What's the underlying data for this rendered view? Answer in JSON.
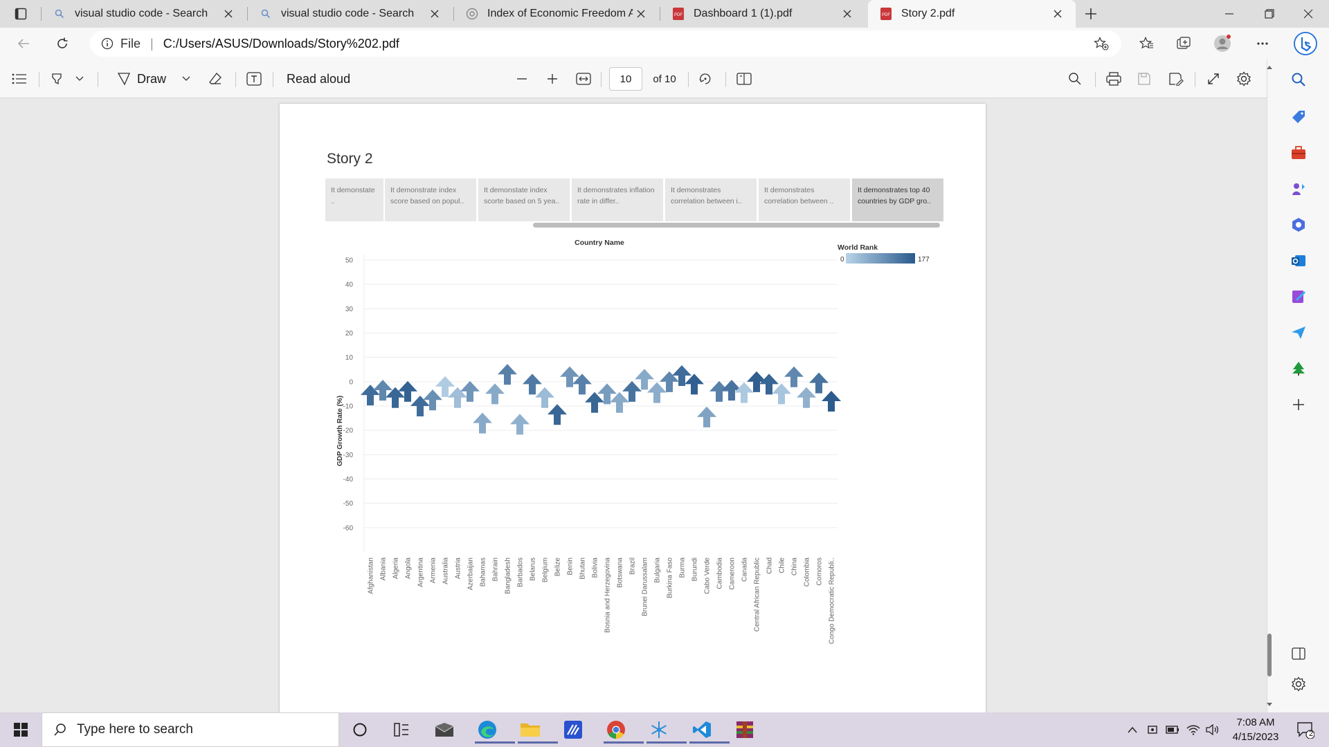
{
  "browser": {
    "tabs": [
      {
        "title": "visual studio code - Search",
        "icon": "search-icon"
      },
      {
        "title": "visual studio code - Search",
        "icon": "search-icon"
      },
      {
        "title": "Index of Economic Freedom Anal",
        "icon": "site-icon"
      },
      {
        "title": "Dashboard 1 (1).pdf",
        "icon": "pdf-icon"
      },
      {
        "title": "Story 2.pdf",
        "icon": "pdf-icon",
        "active": true
      }
    ],
    "address": {
      "scheme_label": "File",
      "url": "C:/Users/ASUS/Downloads/Story%202.pdf"
    }
  },
  "pdf_toolbar": {
    "draw_label": "Draw",
    "read_aloud_label": "Read aloud",
    "page_number": "10",
    "page_total": "of 10"
  },
  "story": {
    "title": "Story 2",
    "points": [
      "It demonstate ..",
      "It demonstrate index score based on popul..",
      "It demonstate index scorte based on 5 yea..",
      "It demonstrates inflation rate in differ..",
      "It demonstrates correlation between i..",
      "It demonstrates correlation between ..",
      "It demonstrates top 40 countries  by GDP gro.."
    ],
    "active_point": 6
  },
  "chart_data": {
    "type": "scatter",
    "mark": "arrow-up",
    "title": "Country Name",
    "xlabel": "",
    "ylabel": "GDP Growth Rate (%)",
    "ylim": [
      -70,
      50
    ],
    "yticks": [
      50,
      40,
      30,
      20,
      10,
      0,
      -10,
      -20,
      -30,
      -40,
      -50,
      -60
    ],
    "grid": true,
    "color_legend": {
      "title": "World Rank",
      "min": 0,
      "max": 177,
      "color_low": "#b8d3e8",
      "color_high": "#2a5a8c",
      "placement": "top-right"
    },
    "categories": [
      "Afghanistan",
      "Albania",
      "Algeria",
      "Angola",
      "Argentina",
      "Armenia",
      "Australia",
      "Austria",
      "Azerbaijan",
      "Bahamas",
      "Bahrain",
      "Bangladesh",
      "Barbados",
      "Belarus",
      "Belgium",
      "Belize",
      "Benin",
      "Bhutan",
      "Bolivia",
      "Bosnia and Herzegovina",
      "Botswana",
      "Brazil",
      "Brunei Darussalam",
      "Bulgaria",
      "Burkina Faso",
      "Burma",
      "Burundi",
      "Cabo Verde",
      "Cambodia",
      "Cameroon",
      "Canada",
      "Central African Republic",
      "Chad",
      "Chile",
      "China",
      "Colombia",
      "Comoros",
      "Congo Democratic Republi.."
    ],
    "values": [
      -5.5,
      -3.5,
      -6.5,
      -4,
      -10,
      -7.5,
      -2,
      -6.5,
      -4,
      -17,
      -5,
      3,
      -17.5,
      -1,
      -6.5,
      -13.5,
      2,
      -1,
      -8.5,
      -5,
      -8.5,
      -4,
      1,
      -4.5,
      0,
      2.5,
      -1,
      -14.5,
      -4,
      -3.5,
      -4.5,
      0,
      -1,
      -5,
      2,
      -6.5,
      -0.5,
      -8
    ],
    "world_rank": [
      150,
      110,
      160,
      165,
      150,
      100,
      10,
      30,
      90,
      60,
      60,
      120,
      50,
      130,
      35,
      160,
      90,
      120,
      160,
      80,
      60,
      140,
      60,
      55,
      110,
      150,
      170,
      70,
      120,
      140,
      15,
      170,
      160,
      20,
      110,
      50,
      140,
      175
    ]
  },
  "taskbar": {
    "search_placeholder": "Type here to search",
    "time": "7:08 AM",
    "date": "4/15/2023",
    "notification_count": "2"
  },
  "colors": {
    "accent": "#0078d4",
    "tabstrip": "#dedede",
    "toolbar": "#f7f7f7",
    "taskbar": "#dcd5e3"
  }
}
